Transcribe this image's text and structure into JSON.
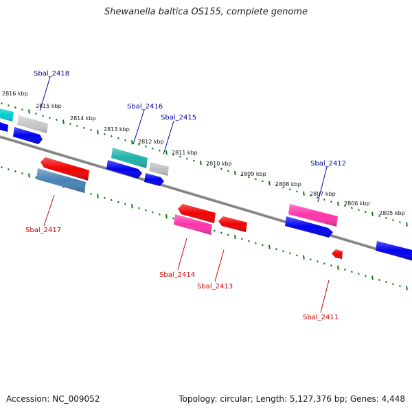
{
  "title": "Shewanella baltica OS155, complete genome",
  "accession": "Accession: NC_009052",
  "summary": "Topology: circular; Length: 5,127,376 bp; Genes: 4,448",
  "colors": {
    "backbone": "#808080",
    "tick": "#008000",
    "forward_label": "#000099",
    "reverse_label": "#cc0000",
    "cyan": "#00cccc",
    "teal": "#20b2aa",
    "gray": "#c0c0c0",
    "blue": "#0000ee",
    "red": "#ee0000",
    "pink": "#ff33aa",
    "steel": "#4682b4"
  },
  "kbp_labels": [
    "2816 kbp",
    "2815 kbp",
    "2814 kbp",
    "2813 kbp",
    "2812 kbp",
    "2811 kbp",
    "2810 kbp",
    "2809 kbp",
    "2808 kbp",
    "2807 kbp",
    "2806 kbp",
    "2805 kbp"
  ],
  "gene_labels": {
    "sbal_2418": "Sbal_2418",
    "sbal_2416": "Sbal_2416",
    "sbal_2415": "Sbal_2415",
    "sbal_2412": "Sbal_2412",
    "sbal_2417": "Sbal_2417",
    "sbal_2414": "Sbal_2414",
    "sbal_2413": "Sbal_2413",
    "sbal_2411": "Sbal_2411"
  }
}
